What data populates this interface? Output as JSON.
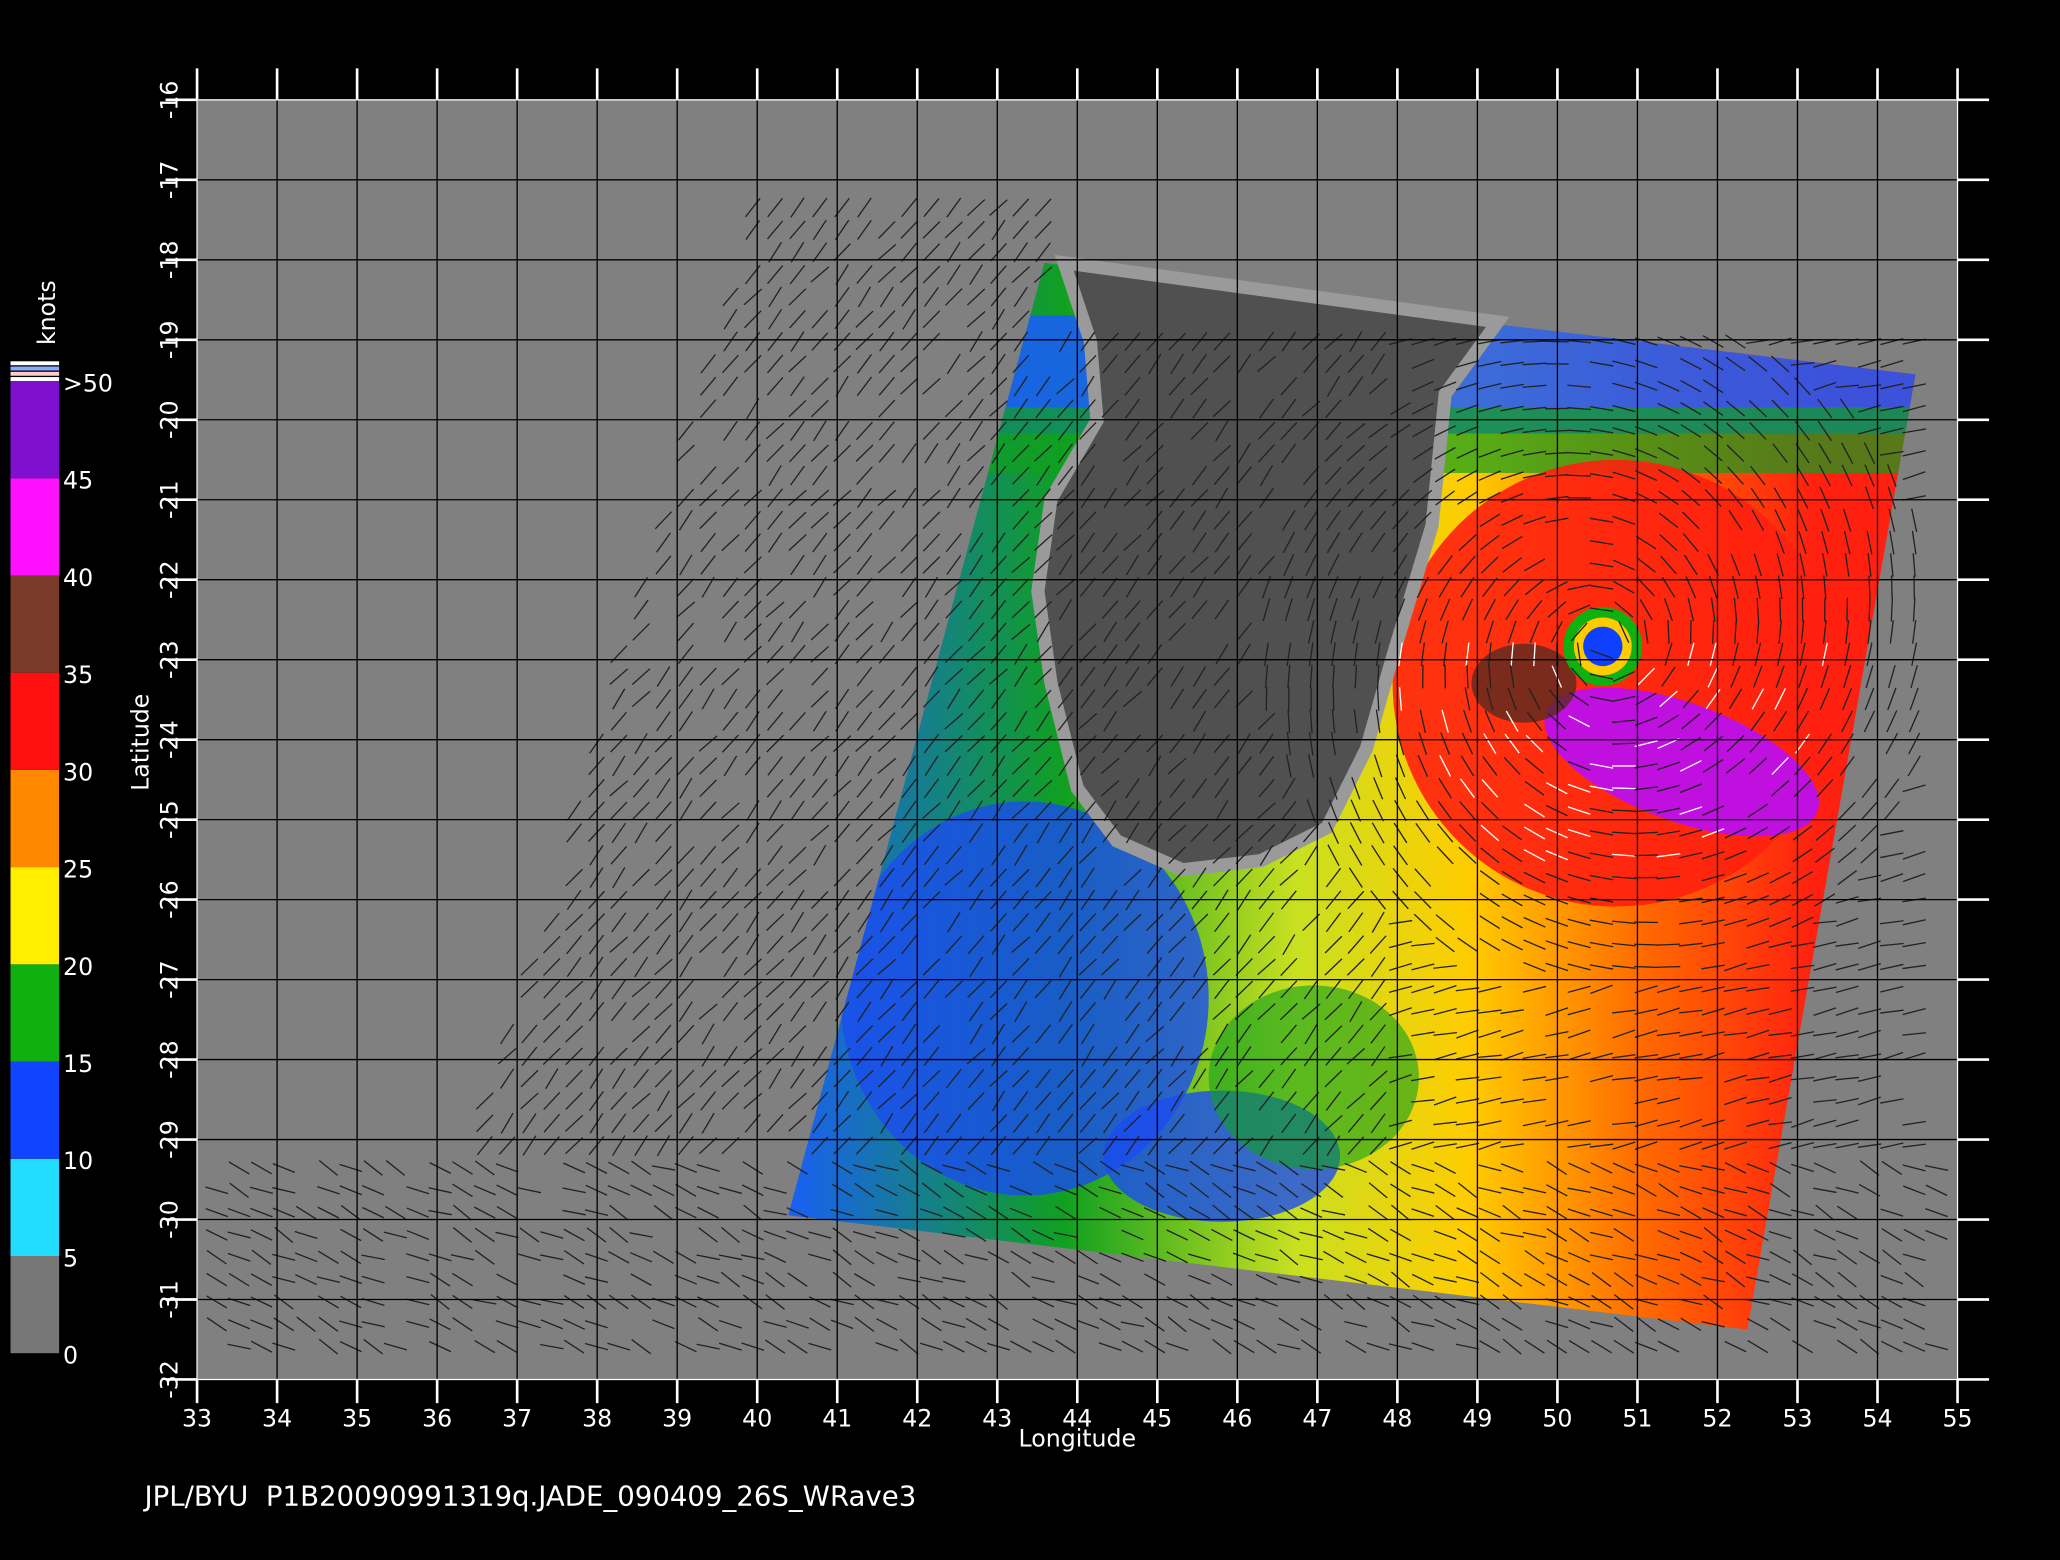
{
  "map": {
    "title": "JPL/BYU  P1B20090991319q.JADE_090409_26S_WRave3",
    "xlabel": "Longitude",
    "ylabel": "Latitude",
    "xlim": [
      33,
      55
    ],
    "ylim": [
      -16,
      -32
    ],
    "xticks": [
      33,
      34,
      35,
      36,
      37,
      38,
      39,
      40,
      41,
      42,
      43,
      44,
      45,
      46,
      47,
      48,
      49,
      50,
      51,
      52,
      53,
      54,
      55
    ],
    "yticks": [
      -16,
      -17,
      -18,
      -19,
      -20,
      -21,
      -22,
      -23,
      -24,
      -25,
      -26,
      -27,
      -28,
      -29,
      -30,
      -31,
      -32
    ],
    "colorbar": {
      "label": "knots",
      "ticks": [
        0,
        5,
        10,
        15,
        20,
        25,
        30,
        35,
        40,
        45,
        {
          "value": 50,
          "label": ">50"
        }
      ],
      "colors": [
        "#777777",
        "#22ddff",
        "#1044ff",
        "#10b010",
        "#ffee00",
        "#ff8800",
        "#ff1010",
        "#7a3a2a",
        "#ff10ff",
        "#8010d0"
      ]
    }
  }
}
